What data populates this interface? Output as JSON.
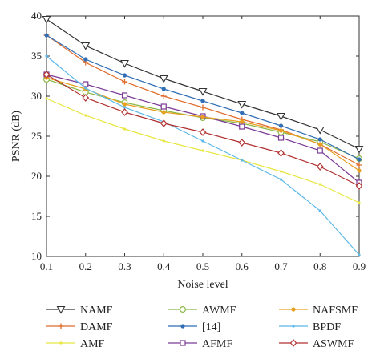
{
  "chart_data": {
    "type": "line",
    "xlabel": "Noise level",
    "ylabel": "PSNR (dB)",
    "xlim": [
      0.1,
      0.9
    ],
    "ylim": [
      10,
      40
    ],
    "x": [
      0.1,
      0.2,
      0.3,
      0.4,
      0.5,
      0.6,
      0.7,
      0.8,
      0.9
    ],
    "x_ticks": [
      "0.1",
      "0.2",
      "0.3",
      "0.4",
      "0.5",
      "0.6",
      "0.7",
      "0.8",
      "0.9"
    ],
    "y_ticks": [
      "10",
      "15",
      "20",
      "25",
      "30",
      "35",
      "40"
    ],
    "grid": false,
    "legend_position": "bottom",
    "series": [
      {
        "name": "NAMF",
        "color": "#333333",
        "marker": "triangle-down",
        "values": [
          39.6,
          36.3,
          34.1,
          32.2,
          30.6,
          29.0,
          27.5,
          25.8,
          23.4
        ]
      },
      {
        "name": "DAMF",
        "color": "#e06b2a",
        "marker": "plus",
        "values": [
          37.6,
          34.2,
          31.8,
          30.0,
          28.6,
          27.1,
          25.8,
          24.0,
          21.4
        ]
      },
      {
        "name": "AMF",
        "color": "#e8e640",
        "marker": "point",
        "values": [
          29.7,
          27.6,
          25.9,
          24.4,
          23.2,
          22.0,
          20.6,
          19.0,
          16.7
        ]
      },
      {
        "name": "AWMF",
        "color": "#8cb848",
        "marker": "circle",
        "values": [
          32.1,
          30.5,
          29.2,
          28.2,
          27.3,
          26.6,
          25.5,
          24.3,
          22.2
        ]
      },
      {
        "name": "[14]",
        "color": "#2f6db5",
        "marker": "dot",
        "values": [
          37.6,
          34.6,
          32.6,
          30.9,
          29.4,
          27.9,
          26.3,
          24.6,
          22.1
        ]
      },
      {
        "name": "AFMF",
        "color": "#7b3a96",
        "marker": "square",
        "values": [
          32.7,
          31.5,
          30.1,
          28.7,
          27.5,
          26.2,
          24.8,
          23.2,
          19.2
        ]
      },
      {
        "name": "NAFSMF",
        "color": "#e8a020",
        "marker": "dot",
        "values": [
          32.3,
          30.9,
          29.0,
          28.0,
          27.4,
          26.8,
          25.7,
          24.0,
          20.7
        ]
      },
      {
        "name": "BPDF",
        "color": "#5cb8e8",
        "marker": "point",
        "values": [
          35.0,
          31.0,
          28.6,
          26.8,
          24.4,
          22.0,
          19.6,
          15.7,
          10.2
        ]
      },
      {
        "name": "ASWMF",
        "color": "#b03030",
        "marker": "diamond",
        "values": [
          32.7,
          29.8,
          28.0,
          26.6,
          25.5,
          24.2,
          22.9,
          21.2,
          18.8
        ]
      }
    ]
  }
}
